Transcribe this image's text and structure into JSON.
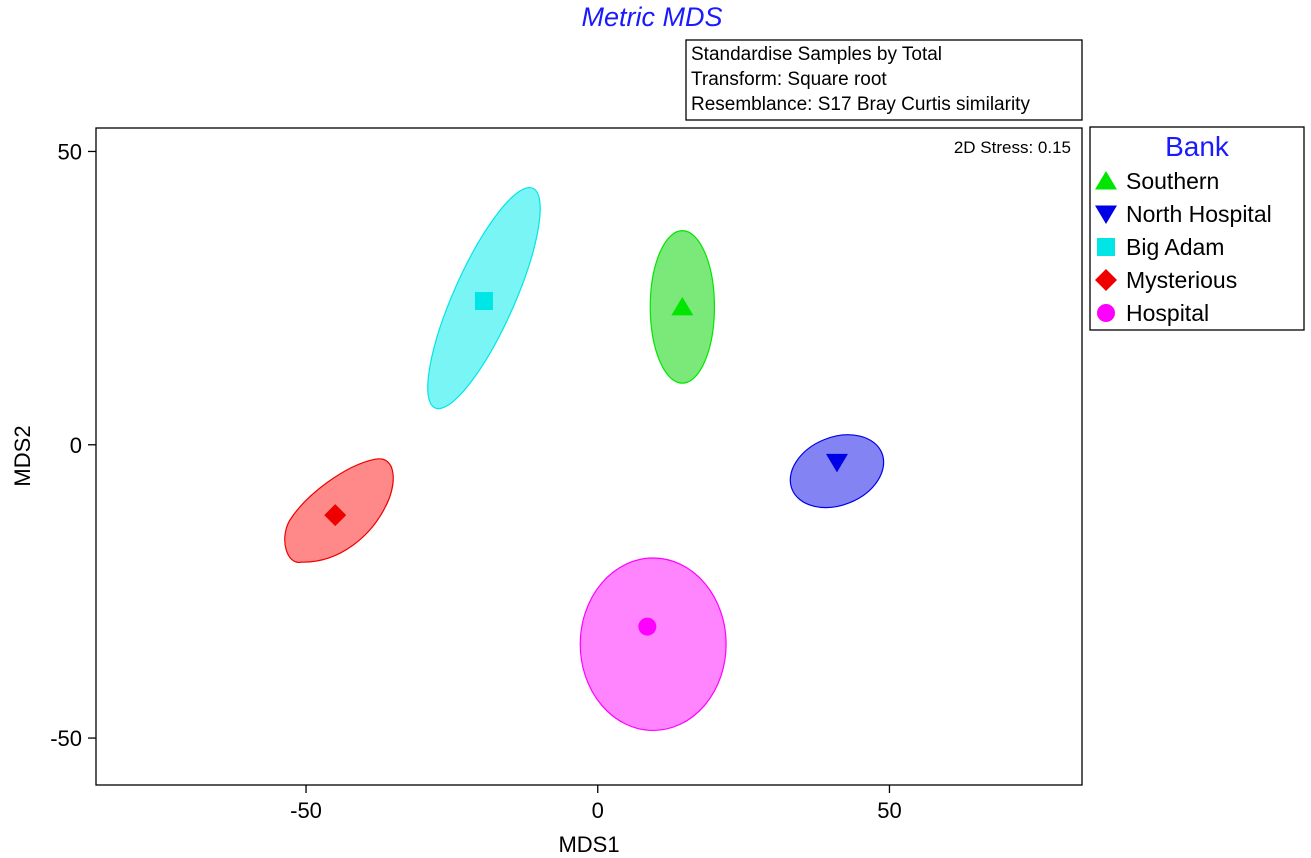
{
  "chart_data": {
    "type": "scatter",
    "title": "Metric MDS",
    "title_color": "#1a1aff",
    "info_box": [
      "Standardise Samples by Total",
      "Transform: Square root",
      "Resemblance: S17 Bray Curtis similarity"
    ],
    "stress_label": "2D Stress: 0.15",
    "xlabel": "MDS1",
    "ylabel": "MDS2",
    "xlim": [
      -86,
      83
    ],
    "ylim": [
      -58,
      54
    ],
    "x_ticks": [
      -50,
      0,
      50
    ],
    "y_ticks": [
      -50,
      0,
      50
    ],
    "x_tick_labels": [
      "-50",
      "0",
      "50"
    ],
    "y_tick_labels": [
      "-50",
      "0",
      "50"
    ],
    "grid": false,
    "legend": {
      "title": "Bank",
      "title_color": "#1a1aff",
      "placement": "right"
    },
    "series": [
      {
        "name": "Southern",
        "marker": "triangle-up",
        "color": "#00e600",
        "fill": "#33dd33",
        "x": 14.5,
        "y": 23.5,
        "ellipse": {
          "cx": 14.5,
          "cy": 23.5,
          "rx": 5.5,
          "ry": 13,
          "angle": 0
        }
      },
      {
        "name": "North Hospital",
        "marker": "triangle-down",
        "color": "#0000e6",
        "fill": "#4040ee",
        "x": 41,
        "y": -3,
        "ellipse": {
          "cx": 41,
          "cy": -4.5,
          "rx": 8.3,
          "ry": 5.8,
          "angle": -22
        }
      },
      {
        "name": "Big Adam",
        "marker": "square",
        "color": "#00e6e6",
        "fill": "#33f0f0",
        "x": -19.5,
        "y": 24.5,
        "ellipse": {
          "cx": -19.5,
          "cy": 25,
          "rx": 5.2,
          "ry": 20.5,
          "angle": 24
        }
      },
      {
        "name": "Mysterious",
        "marker": "diamond",
        "color": "#ee0000",
        "fill": "#ff4a4a",
        "x": -45,
        "y": -12,
        "ellipse": null
      },
      {
        "name": "Hospital",
        "marker": "circle",
        "color": "#ff00ff",
        "fill": "#ff44ff",
        "x": 8.5,
        "y": -31,
        "ellipse": {
          "cx": 9.5,
          "cy": -34,
          "rx": 12.5,
          "ry": 14.7,
          "angle": 0
        }
      }
    ]
  }
}
